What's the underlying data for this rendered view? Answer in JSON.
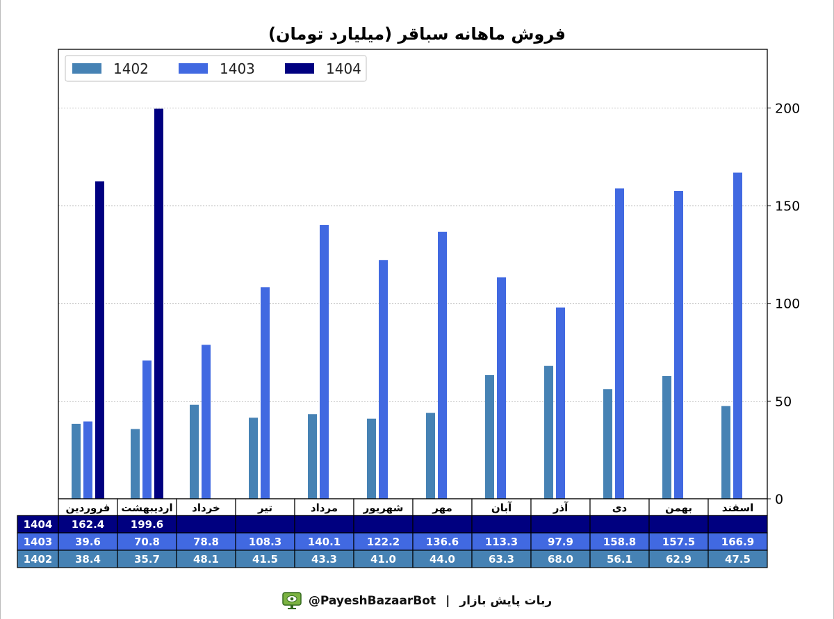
{
  "chart_data": {
    "type": "bar",
    "title": "فروش ماهانه سباقر (میلیارد تومان)",
    "categories": [
      "فروردین",
      "اردیبهشت",
      "خرداد",
      "تیر",
      "مرداد",
      "شهریور",
      "مهر",
      "آبان",
      "آذر",
      "دی",
      "بهمن",
      "اسفند"
    ],
    "series": [
      {
        "name": "1402",
        "color": "#4682B4",
        "values": [
          38.4,
          35.7,
          48.1,
          41.5,
          43.3,
          41.0,
          44.0,
          63.3,
          68.0,
          56.1,
          62.9,
          47.5
        ]
      },
      {
        "name": "1403",
        "color": "#4169E1",
        "values": [
          39.6,
          70.8,
          78.8,
          108.3,
          140.1,
          122.2,
          136.6,
          113.3,
          97.9,
          158.8,
          157.5,
          166.9
        ]
      },
      {
        "name": "1404",
        "color": "#000080",
        "values": [
          162.4,
          199.6,
          null,
          null,
          null,
          null,
          null,
          null,
          null,
          null,
          null,
          null
        ]
      }
    ],
    "ylim": [
      0,
      230
    ],
    "yticks": [
      0,
      50,
      100,
      150,
      200
    ],
    "y_axis_side": "right",
    "grid": "horizontal dotted",
    "legend_position": "top-left",
    "table": {
      "row_order": [
        "1404",
        "1403",
        "1402"
      ],
      "formatted": {
        "1404": [
          "162.4",
          "199.6",
          "",
          "",
          "",
          "",
          "",
          "",
          "",
          "",
          "",
          ""
        ],
        "1403": [
          "39.6",
          "70.8",
          "78.8",
          "108.3",
          "140.1",
          "122.2",
          "136.6",
          "113.3",
          "97.9",
          "158.8",
          "157.5",
          "166.9"
        ],
        "1402": [
          "38.4",
          "35.7",
          "48.1",
          "41.5",
          "43.3",
          "41.0",
          "44.0",
          "63.3",
          "68.0",
          "56.1",
          "62.9",
          "47.5"
        ]
      }
    }
  },
  "footer": {
    "handle": "@PayeshBazaarBot",
    "separator": "|",
    "bot_name": "ربات پایش بازار",
    "icon": "monitor-eye-icon"
  }
}
